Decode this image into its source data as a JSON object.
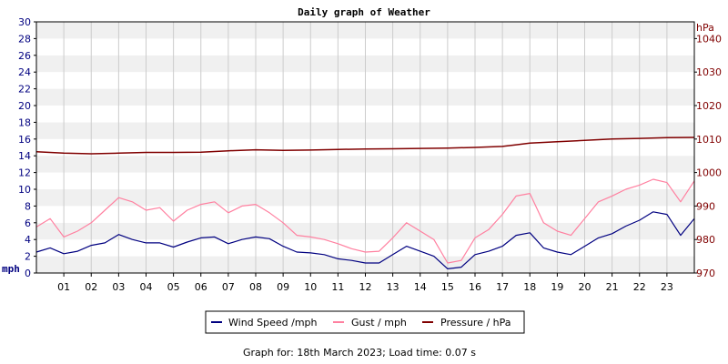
{
  "chart_data": {
    "type": "line",
    "title": "Daily graph of Weather",
    "x_tick_labels": [
      "01",
      "02",
      "03",
      "04",
      "05",
      "06",
      "07",
      "08",
      "09",
      "10",
      "11",
      "12",
      "13",
      "14",
      "15",
      "16",
      "17",
      "18",
      "19",
      "20",
      "21",
      "22",
      "23"
    ],
    "x_range_hours": [
      0,
      24
    ],
    "y_left": {
      "label": "mph",
      "range": [
        0,
        30
      ],
      "tick_labels": [
        "0",
        "2",
        "4",
        "6",
        "8",
        "10",
        "12",
        "14",
        "16",
        "18",
        "20",
        "22",
        "24",
        "26",
        "28",
        "30"
      ]
    },
    "y_right": {
      "label": "hPa",
      "range": [
        970,
        1045
      ],
      "tick_labels": [
        "970",
        "980",
        "990",
        "1000",
        "1010",
        "1020",
        "1030",
        "1040"
      ]
    },
    "grid": true,
    "legend_position": "bottom",
    "series": [
      {
        "name": "Wind Speed /mph",
        "axis": "left",
        "color": "#000080",
        "hour": [
          0,
          0.5,
          1,
          1.5,
          2,
          2.5,
          3,
          3.5,
          4,
          4.5,
          5,
          5.5,
          6,
          6.5,
          7,
          7.5,
          8,
          8.5,
          9,
          9.5,
          10,
          10.5,
          11,
          11.5,
          12,
          12.5,
          13,
          13.5,
          14,
          14.5,
          15,
          15.5,
          16,
          16.5,
          17,
          17.5,
          18,
          18.5,
          19,
          19.5,
          20,
          20.5,
          21,
          21.5,
          22,
          22.5,
          23,
          23.5,
          24
        ],
        "values": [
          2.5,
          3.0,
          2.3,
          2.6,
          3.3,
          3.6,
          4.6,
          4.0,
          3.6,
          3.6,
          3.1,
          3.7,
          4.2,
          4.3,
          3.5,
          4.0,
          4.3,
          4.1,
          3.2,
          2.5,
          2.4,
          2.2,
          1.7,
          1.5,
          1.2,
          1.2,
          2.2,
          3.2,
          2.6,
          2.0,
          0.5,
          0.7,
          2.2,
          2.6,
          3.2,
          4.5,
          4.8,
          3.0,
          2.5,
          2.2,
          3.2,
          4.2,
          4.7,
          5.6,
          6.3,
          7.3,
          7.0,
          4.5,
          6.5
        ]
      },
      {
        "name": "Gust / mph",
        "axis": "left",
        "color": "#ff80a0",
        "hour": [
          0,
          0.5,
          1,
          1.5,
          2,
          2.5,
          3,
          3.5,
          4,
          4.5,
          5,
          5.5,
          6,
          6.5,
          7,
          7.5,
          8,
          8.5,
          9,
          9.5,
          10,
          10.5,
          11,
          11.5,
          12,
          12.5,
          13,
          13.5,
          14,
          14.5,
          15,
          15.5,
          16,
          16.5,
          17,
          17.5,
          18,
          18.5,
          19,
          19.5,
          20,
          20.5,
          21,
          21.5,
          22,
          22.5,
          23,
          23.5,
          24
        ],
        "values": [
          5.5,
          6.5,
          4.3,
          5.0,
          6.0,
          7.5,
          9.0,
          8.5,
          7.5,
          7.8,
          6.2,
          7.5,
          8.2,
          8.5,
          7.2,
          8.0,
          8.2,
          7.2,
          6.0,
          4.5,
          4.3,
          4.0,
          3.5,
          2.9,
          2.5,
          2.6,
          4.2,
          6.0,
          5.0,
          4.0,
          1.2,
          1.5,
          4.2,
          5.2,
          7.0,
          9.2,
          9.5,
          6.0,
          5.0,
          4.5,
          6.5,
          8.5,
          9.2,
          10.0,
          10.5,
          11.2,
          10.8,
          8.5,
          11.0
        ]
      },
      {
        "name": "Pressure / hPa",
        "axis": "right",
        "color": "#800000",
        "hour": [
          0,
          1,
          2,
          3,
          4,
          5,
          6,
          7,
          8,
          9,
          10,
          11,
          12,
          13,
          14,
          15,
          16,
          17,
          17.5,
          18,
          19,
          20,
          21,
          22,
          23,
          24
        ],
        "values": [
          1006.2,
          1005.8,
          1005.6,
          1005.8,
          1006.0,
          1006.0,
          1006.1,
          1006.5,
          1006.8,
          1006.6,
          1006.7,
          1006.9,
          1007.0,
          1007.1,
          1007.2,
          1007.3,
          1007.5,
          1007.8,
          1008.3,
          1008.8,
          1009.2,
          1009.6,
          1010.0,
          1010.2,
          1010.4,
          1010.5
        ]
      }
    ]
  },
  "footer": "Graph for: 18th March 2023; Load time: 0.07 s"
}
